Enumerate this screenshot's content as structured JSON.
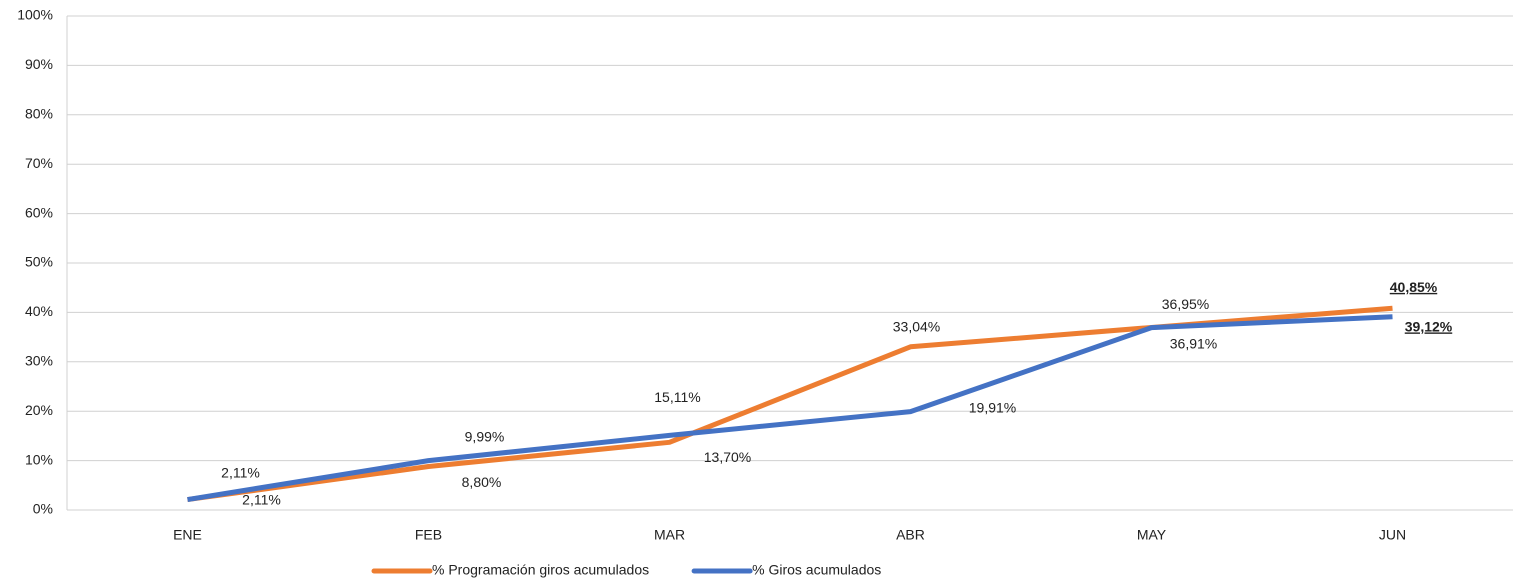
{
  "chart_data": {
    "type": "line",
    "categories": [
      "ENE",
      "FEB",
      "MAR",
      "ABR",
      "MAY",
      "JUN"
    ],
    "series": [
      {
        "name": "% Programación giros acumulados",
        "color": "#ed7d31",
        "values": [
          2.11,
          8.8,
          13.7,
          33.04,
          36.95,
          40.85
        ],
        "value_labels": [
          "2,11%",
          "8,80%",
          "13,70%",
          "33,04%",
          "36,95%",
          "40,85%"
        ]
      },
      {
        "name": "% Giros acumulados",
        "color": "#4472c4",
        "values": [
          2.11,
          9.99,
          15.11,
          19.91,
          36.91,
          39.12
        ],
        "value_labels": [
          "2,11%",
          "9,99%",
          "15,11%",
          "19,91%",
          "36,91%",
          "39,12%"
        ]
      }
    ],
    "ylim": [
      0,
      100
    ],
    "yticks": [
      {
        "value": 0,
        "label": "0%"
      },
      {
        "value": 10,
        "label": "10%"
      },
      {
        "value": 20,
        "label": "20%"
      },
      {
        "value": 30,
        "label": "30%"
      },
      {
        "value": 40,
        "label": "40%"
      },
      {
        "value": 50,
        "label": "50%"
      },
      {
        "value": 60,
        "label": "60%"
      },
      {
        "value": 70,
        "label": "70%"
      },
      {
        "value": 80,
        "label": "80%"
      },
      {
        "value": 90,
        "label": "90%"
      },
      {
        "value": 100,
        "label": "100%"
      }
    ],
    "grid": true,
    "legend": "bottom"
  }
}
